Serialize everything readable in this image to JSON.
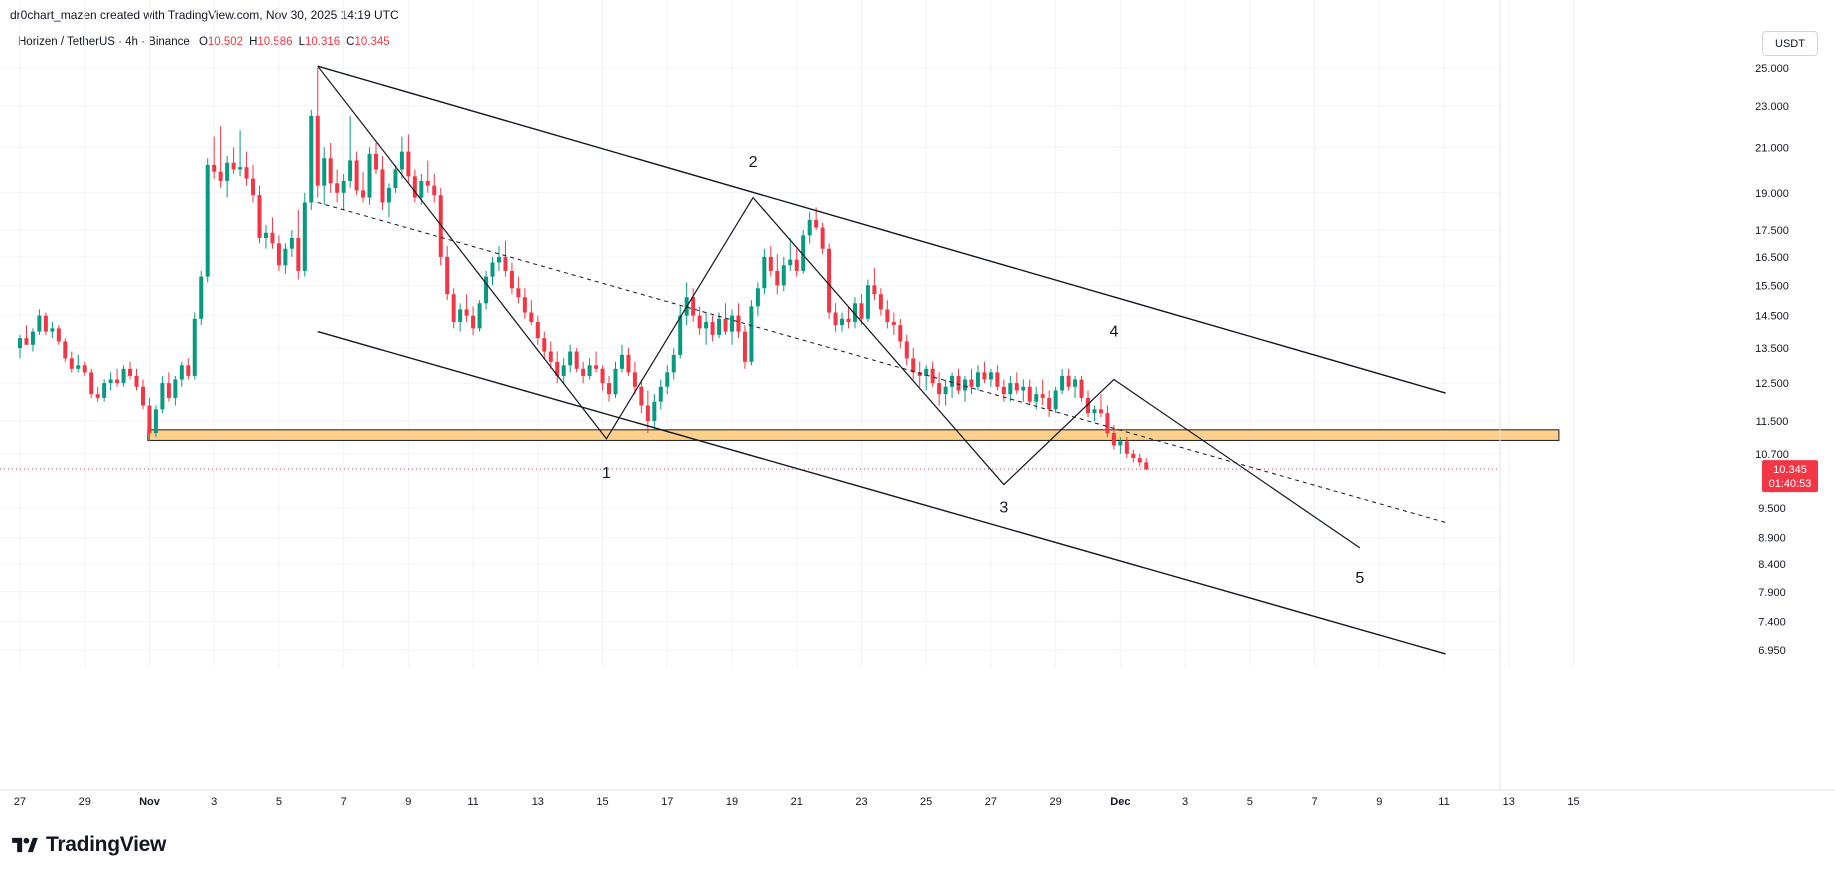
{
  "header": {
    "attribution": "dr0chart_mazen created with TradingView.com, Nov 30, 2025 14:19 UTC"
  },
  "legend": {
    "symbol": "Horizen / TetherUS · 4h · Binance",
    "open_label": "O",
    "open": "10.502",
    "high_label": "H",
    "high": "10.586",
    "low_label": "L",
    "low": "10.316",
    "close_label": "C",
    "close": "10.345"
  },
  "currency": "USDT",
  "price_badge": {
    "price": "10.345",
    "countdown": "01:40:53"
  },
  "footer": {
    "brand": "TradingView"
  },
  "colors": {
    "up": "#089981",
    "down": "#f23645",
    "zone_fill": "#ffd08a",
    "zone_stroke": "#1a1a1a",
    "grid": "#f0f3fa",
    "price_badge": "#f23645"
  },
  "chart_data": {
    "type": "candlestick",
    "timeframe": "4h",
    "scale": "log",
    "grid": true,
    "y_ticks": [
      "25.000",
      "23.000",
      "21.000",
      "19.000",
      "17.500",
      "16.500",
      "15.500",
      "14.500",
      "13.500",
      "12.500",
      "11.500",
      "10.700",
      "9.500",
      "8.900",
      "8.400",
      "7.900",
      "7.400",
      "6.950"
    ],
    "x_ticks": [
      "27",
      "29",
      "Nov",
      "3",
      "5",
      "7",
      "9",
      "11",
      "13",
      "15",
      "17",
      "19",
      "21",
      "23",
      "25",
      "27",
      "29",
      "Dec",
      "3",
      "5",
      "7",
      "9",
      "11",
      "13",
      "15"
    ],
    "x_range_days": [
      -4.2,
      45.6
    ],
    "last_price": 10.345,
    "candles": [
      [
        -4.0,
        13.5,
        13.9,
        13.2,
        13.8
      ],
      [
        -3.8,
        13.8,
        14.2,
        13.6,
        13.6
      ],
      [
        -3.6,
        13.6,
        14.1,
        13.4,
        14.0
      ],
      [
        -3.4,
        14.0,
        14.7,
        13.9,
        14.5
      ],
      [
        -3.2,
        14.5,
        14.6,
        13.9,
        14.0
      ],
      [
        -3.0,
        14.0,
        14.3,
        13.8,
        14.1
      ],
      [
        -2.8,
        14.1,
        14.2,
        13.6,
        13.7
      ],
      [
        -2.6,
        13.7,
        13.8,
        13.1,
        13.2
      ],
      [
        -2.4,
        13.2,
        13.4,
        12.8,
        12.9
      ],
      [
        -2.2,
        12.9,
        13.3,
        12.8,
        13.0
      ],
      [
        -2.0,
        13.0,
        13.1,
        12.7,
        12.8
      ],
      [
        -1.8,
        12.8,
        12.9,
        12.1,
        12.2
      ],
      [
        -1.6,
        12.2,
        12.4,
        12.0,
        12.1
      ],
      [
        -1.4,
        12.1,
        12.6,
        12.0,
        12.5
      ],
      [
        -1.2,
        12.5,
        12.8,
        12.3,
        12.6
      ],
      [
        -1.0,
        12.6,
        12.9,
        12.4,
        12.5
      ],
      [
        -0.8,
        12.5,
        13.0,
        12.4,
        12.9
      ],
      [
        -0.6,
        12.9,
        13.1,
        12.6,
        12.7
      ],
      [
        -0.4,
        12.7,
        12.9,
        12.3,
        12.4
      ],
      [
        -0.2,
        12.4,
        12.6,
        11.8,
        11.9
      ],
      [
        0.0,
        11.9,
        12.1,
        11.0,
        11.2
      ],
      [
        0.2,
        11.2,
        11.9,
        11.1,
        11.8
      ],
      [
        0.4,
        11.8,
        12.7,
        11.7,
        12.5
      ],
      [
        0.6,
        12.5,
        12.8,
        12.0,
        12.1
      ],
      [
        0.8,
        12.1,
        12.7,
        11.9,
        12.6
      ],
      [
        1.0,
        12.6,
        13.1,
        12.4,
        13.0
      ],
      [
        1.2,
        13.0,
        13.2,
        12.6,
        12.7
      ],
      [
        1.4,
        12.7,
        14.6,
        12.6,
        14.4
      ],
      [
        1.6,
        14.4,
        16.0,
        14.2,
        15.8
      ],
      [
        1.8,
        15.8,
        20.5,
        15.6,
        20.2
      ],
      [
        2.0,
        20.2,
        21.5,
        19.6,
        19.9
      ],
      [
        2.2,
        19.9,
        22.0,
        19.2,
        19.5
      ],
      [
        2.4,
        19.5,
        20.6,
        18.8,
        20.3
      ],
      [
        2.6,
        20.3,
        21.0,
        19.8,
        20.0
      ],
      [
        2.8,
        20.0,
        21.8,
        19.7,
        20.1
      ],
      [
        3.0,
        20.1,
        20.8,
        19.3,
        19.6
      ],
      [
        3.2,
        19.6,
        20.2,
        18.6,
        18.9
      ],
      [
        3.4,
        18.9,
        19.3,
        17.0,
        17.2
      ],
      [
        3.6,
        17.2,
        17.7,
        16.8,
        17.4
      ],
      [
        3.8,
        17.4,
        18.0,
        16.8,
        17.0
      ],
      [
        4.0,
        17.0,
        17.3,
        16.0,
        16.2
      ],
      [
        4.2,
        16.2,
        17.0,
        15.9,
        16.8
      ],
      [
        4.4,
        16.8,
        17.5,
        16.5,
        17.2
      ],
      [
        4.6,
        17.2,
        18.3,
        15.7,
        16.0
      ],
      [
        4.8,
        16.0,
        19.0,
        15.8,
        18.6
      ],
      [
        5.0,
        18.6,
        22.8,
        18.3,
        22.5
      ],
      [
        5.2,
        22.5,
        25.0,
        18.8,
        19.3
      ],
      [
        5.4,
        19.3,
        21.0,
        18.5,
        20.5
      ],
      [
        5.6,
        20.5,
        21.2,
        19.0,
        19.4
      ],
      [
        5.8,
        19.4,
        20.0,
        18.6,
        19.0
      ],
      [
        6.0,
        19.0,
        19.8,
        18.3,
        19.5
      ],
      [
        6.2,
        19.5,
        22.5,
        19.2,
        20.4
      ],
      [
        6.4,
        20.4,
        20.8,
        18.9,
        19.1
      ],
      [
        6.6,
        19.1,
        19.9,
        18.6,
        18.8
      ],
      [
        6.8,
        18.8,
        21.0,
        18.5,
        20.7
      ],
      [
        7.0,
        20.7,
        21.2,
        19.8,
        20.0
      ],
      [
        7.2,
        20.0,
        20.6,
        18.3,
        18.6
      ],
      [
        7.4,
        18.6,
        19.4,
        18.0,
        19.2
      ],
      [
        7.6,
        19.2,
        20.2,
        19.0,
        20.0
      ],
      [
        7.8,
        20.0,
        21.5,
        19.6,
        20.8
      ],
      [
        8.0,
        20.8,
        21.6,
        19.4,
        19.7
      ],
      [
        8.2,
        19.7,
        20.0,
        18.6,
        18.8
      ],
      [
        8.4,
        18.8,
        19.8,
        18.5,
        19.5
      ],
      [
        8.6,
        19.5,
        20.4,
        19.0,
        19.3
      ],
      [
        8.8,
        19.3,
        19.8,
        18.6,
        18.9
      ],
      [
        9.0,
        18.9,
        19.2,
        16.2,
        16.5
      ],
      [
        9.2,
        16.5,
        16.9,
        15.0,
        15.2
      ],
      [
        9.4,
        15.2,
        15.4,
        14.1,
        14.3
      ],
      [
        9.6,
        14.3,
        14.9,
        14.0,
        14.7
      ],
      [
        9.8,
        14.7,
        15.2,
        14.3,
        14.5
      ],
      [
        10.0,
        14.5,
        14.8,
        13.9,
        14.1
      ],
      [
        10.2,
        14.1,
        15.0,
        14.0,
        14.9
      ],
      [
        10.4,
        14.9,
        16.0,
        14.7,
        15.8
      ],
      [
        10.6,
        15.8,
        16.5,
        15.5,
        16.3
      ],
      [
        10.8,
        16.3,
        16.9,
        16.0,
        16.5
      ],
      [
        11.0,
        16.5,
        17.1,
        15.8,
        16.0
      ],
      [
        11.2,
        16.0,
        16.3,
        15.2,
        15.4
      ],
      [
        11.4,
        15.4,
        15.8,
        14.9,
        15.1
      ],
      [
        11.6,
        15.1,
        15.4,
        14.4,
        14.6
      ],
      [
        11.8,
        14.6,
        15.0,
        14.2,
        14.3
      ],
      [
        12.0,
        14.3,
        14.5,
        13.6,
        13.8
      ],
      [
        12.2,
        13.8,
        14.0,
        13.2,
        13.4
      ],
      [
        12.4,
        13.4,
        13.7,
        12.9,
        13.1
      ],
      [
        12.6,
        13.1,
        13.4,
        12.5,
        12.7
      ],
      [
        12.8,
        12.7,
        13.2,
        12.5,
        13.0
      ],
      [
        13.0,
        13.0,
        13.6,
        12.8,
        13.4
      ],
      [
        13.2,
        13.4,
        13.5,
        12.8,
        12.9
      ],
      [
        13.4,
        12.9,
        13.1,
        12.5,
        12.7
      ],
      [
        13.6,
        12.7,
        13.2,
        12.6,
        13.0
      ],
      [
        13.8,
        13.0,
        13.4,
        12.8,
        12.9
      ],
      [
        14.0,
        12.9,
        13.0,
        12.3,
        12.5
      ],
      [
        14.2,
        12.5,
        12.7,
        12.0,
        12.2
      ],
      [
        14.4,
        12.2,
        13.1,
        12.1,
        12.9
      ],
      [
        14.6,
        12.9,
        13.6,
        12.8,
        13.3
      ],
      [
        14.8,
        13.3,
        13.5,
        12.7,
        12.8
      ],
      [
        15.0,
        12.8,
        13.1,
        12.2,
        12.4
      ],
      [
        15.2,
        12.4,
        12.6,
        11.7,
        11.9
      ],
      [
        15.4,
        11.9,
        12.3,
        11.2,
        11.5
      ],
      [
        15.6,
        11.5,
        12.2,
        11.3,
        12.0
      ],
      [
        15.8,
        12.0,
        12.6,
        11.8,
        12.4
      ],
      [
        16.0,
        12.4,
        13.0,
        12.2,
        12.8
      ],
      [
        16.2,
        12.8,
        13.5,
        12.6,
        13.3
      ],
      [
        16.4,
        13.3,
        14.8,
        13.2,
        14.5
      ],
      [
        16.6,
        14.5,
        15.6,
        14.2,
        15.1
      ],
      [
        16.8,
        15.1,
        15.4,
        14.3,
        14.5
      ],
      [
        17.0,
        14.5,
        14.8,
        13.9,
        14.1
      ],
      [
        17.2,
        14.1,
        14.6,
        13.6,
        14.3
      ],
      [
        17.4,
        14.3,
        14.5,
        13.7,
        13.9
      ],
      [
        17.6,
        13.9,
        14.6,
        13.8,
        14.4
      ],
      [
        17.8,
        14.4,
        14.9,
        13.9,
        14.0
      ],
      [
        18.0,
        14.0,
        14.7,
        13.6,
        14.5
      ],
      [
        18.2,
        14.5,
        14.9,
        13.8,
        14.0
      ],
      [
        18.4,
        14.0,
        14.2,
        12.9,
        13.1
      ],
      [
        18.6,
        13.1,
        15.0,
        13.0,
        14.8
      ],
      [
        18.8,
        14.8,
        15.6,
        14.5,
        15.4
      ],
      [
        19.0,
        15.4,
        16.8,
        15.2,
        16.5
      ],
      [
        19.2,
        16.5,
        16.9,
        15.8,
        16.0
      ],
      [
        19.4,
        16.0,
        16.6,
        15.2,
        15.5
      ],
      [
        19.6,
        15.5,
        16.5,
        15.3,
        16.2
      ],
      [
        19.8,
        16.2,
        17.2,
        16.0,
        16.4
      ],
      [
        20.0,
        16.4,
        16.8,
        15.8,
        16.0
      ],
      [
        20.2,
        16.0,
        17.5,
        15.9,
        17.3
      ],
      [
        20.4,
        17.3,
        18.2,
        17.0,
        17.9
      ],
      [
        20.6,
        17.9,
        18.4,
        17.5,
        17.6
      ],
      [
        20.8,
        17.6,
        17.8,
        16.6,
        16.8
      ],
      [
        21.0,
        16.8,
        17.0,
        14.4,
        14.6
      ],
      [
        21.2,
        14.6,
        14.9,
        14.0,
        14.2
      ],
      [
        21.4,
        14.2,
        14.6,
        14.0,
        14.4
      ],
      [
        21.6,
        14.4,
        14.8,
        14.1,
        14.3
      ],
      [
        21.8,
        14.3,
        15.1,
        14.1,
        14.9
      ],
      [
        22.0,
        14.9,
        15.2,
        14.2,
        14.4
      ],
      [
        22.2,
        14.4,
        15.7,
        14.3,
        15.5
      ],
      [
        22.4,
        15.5,
        16.1,
        15.0,
        15.2
      ],
      [
        22.6,
        15.2,
        15.4,
        14.5,
        14.7
      ],
      [
        22.8,
        14.7,
        15.0,
        14.1,
        14.3
      ],
      [
        23.0,
        14.3,
        14.6,
        13.9,
        14.2
      ],
      [
        23.2,
        14.2,
        14.4,
        13.5,
        13.7
      ],
      [
        23.4,
        13.7,
        13.9,
        13.0,
        13.2
      ],
      [
        23.6,
        13.2,
        13.5,
        12.6,
        12.8
      ],
      [
        23.8,
        12.8,
        13.1,
        12.4,
        12.7
      ],
      [
        24.0,
        12.7,
        13.0,
        12.3,
        12.9
      ],
      [
        24.2,
        12.9,
        13.1,
        12.4,
        12.5
      ],
      [
        24.4,
        12.5,
        12.8,
        11.9,
        12.2
      ],
      [
        24.6,
        12.2,
        12.6,
        11.9,
        12.4
      ],
      [
        24.8,
        12.4,
        12.8,
        12.1,
        12.7
      ],
      [
        25.0,
        12.7,
        12.9,
        12.2,
        12.3
      ],
      [
        25.2,
        12.3,
        12.7,
        12.0,
        12.6
      ],
      [
        25.4,
        12.6,
        12.9,
        12.2,
        12.4
      ],
      [
        25.6,
        12.4,
        13.0,
        12.3,
        12.8
      ],
      [
        25.8,
        12.8,
        13.1,
        12.5,
        12.6
      ],
      [
        26.0,
        12.6,
        12.9,
        12.4,
        12.8
      ],
      [
        26.2,
        12.8,
        13.0,
        12.3,
        12.4
      ],
      [
        26.4,
        12.4,
        12.6,
        12.0,
        12.2
      ],
      [
        26.6,
        12.2,
        12.7,
        12.0,
        12.5
      ],
      [
        26.8,
        12.5,
        12.8,
        12.2,
        12.3
      ],
      [
        27.0,
        12.3,
        12.6,
        12.0,
        12.4
      ],
      [
        27.2,
        12.4,
        12.6,
        11.9,
        12.0
      ],
      [
        27.4,
        12.0,
        12.4,
        11.8,
        12.2
      ],
      [
        27.6,
        12.2,
        12.6,
        11.9,
        12.1
      ],
      [
        27.8,
        12.1,
        12.3,
        11.6,
        11.8
      ],
      [
        28.0,
        11.8,
        12.4,
        11.7,
        12.3
      ],
      [
        28.2,
        12.3,
        12.9,
        12.2,
        12.7
      ],
      [
        28.4,
        12.7,
        12.9,
        12.3,
        12.4
      ],
      [
        28.6,
        12.4,
        12.7,
        12.1,
        12.6
      ],
      [
        28.8,
        12.6,
        12.7,
        12.0,
        12.1
      ],
      [
        29.0,
        12.1,
        12.3,
        11.6,
        11.7
      ],
      [
        29.2,
        11.7,
        11.9,
        11.5,
        11.8
      ],
      [
        29.4,
        11.8,
        12.2,
        11.6,
        11.7
      ],
      [
        29.6,
        11.7,
        11.9,
        11.1,
        11.2
      ],
      [
        29.8,
        11.2,
        11.4,
        10.8,
        10.9
      ],
      [
        30.0,
        10.9,
        11.1,
        10.7,
        11.0
      ],
      [
        30.2,
        11.0,
        11.1,
        10.6,
        10.7
      ],
      [
        30.4,
        10.7,
        10.8,
        10.5,
        10.6
      ],
      [
        30.6,
        10.6,
        10.7,
        10.4,
        10.5
      ],
      [
        30.8,
        10.5,
        10.6,
        10.316,
        10.345
      ]
    ],
    "drawings": {
      "support_zone": {
        "start_day": -0.05,
        "end_day": 43.55,
        "top": 11.28,
        "bottom": 11.02
      },
      "upper_channel_line": [
        [
          5.2,
          25.1
        ],
        [
          40.05,
          12.23
        ]
      ],
      "lower_channel_line": [
        [
          5.2,
          14.0
        ],
        [
          40.05,
          6.89
        ]
      ],
      "middle_dashed_line": [
        [
          5.2,
          18.6
        ],
        [
          40.05,
          9.2
        ]
      ],
      "wave_path": [
        [
          5.2,
          25.1
        ],
        [
          14.12,
          11.06
        ],
        [
          18.65,
          18.8
        ],
        [
          26.4,
          10.0
        ],
        [
          29.8,
          12.6
        ],
        [
          37.4,
          8.7
        ]
      ],
      "wave_labels": [
        {
          "text": "1",
          "day": 14.12,
          "price": 10.15
        },
        {
          "text": "2",
          "day": 18.65,
          "price": 20.1
        },
        {
          "text": "3",
          "day": 26.4,
          "price": 9.4
        },
        {
          "text": "4",
          "day": 29.8,
          "price": 13.85
        },
        {
          "text": "5",
          "day": 37.4,
          "price": 8.05
        }
      ]
    }
  }
}
